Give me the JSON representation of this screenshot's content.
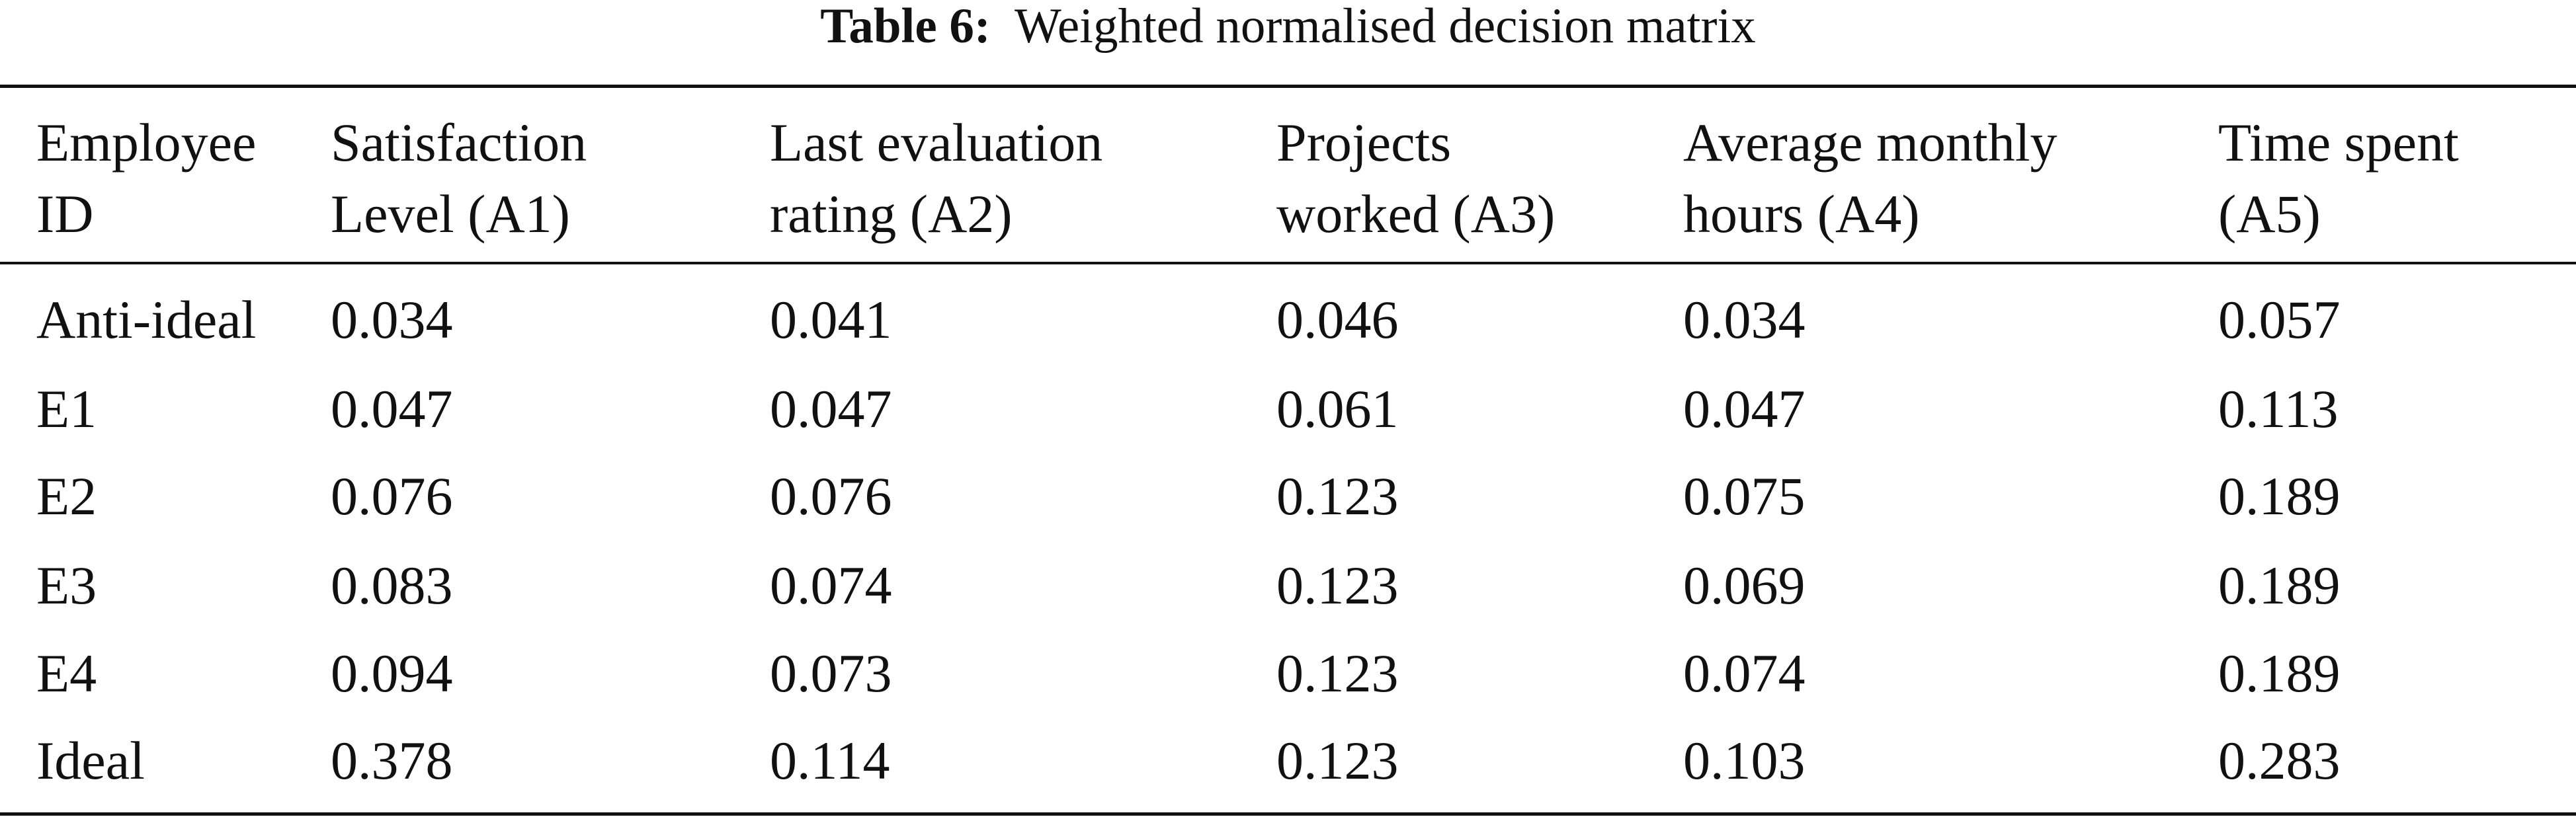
{
  "caption": {
    "label": "Table 6:",
    "title": "Weighted normalised decision matrix"
  },
  "table": {
    "headers": [
      [
        "Employee",
        "ID"
      ],
      [
        "Satisfaction",
        "Level (A1)"
      ],
      [
        "Last evaluation",
        "rating (A2)"
      ],
      [
        "Projects",
        "worked (A3)"
      ],
      [
        "Average monthly",
        "hours (A4)"
      ],
      [
        "Time spent",
        "(A5)"
      ]
    ],
    "rows": [
      [
        "Anti-ideal",
        "0.034",
        "0.041",
        "0.046",
        "0.034",
        "0.057"
      ],
      [
        "E1",
        "0.047",
        "0.047",
        "0.061",
        "0.047",
        "0.113"
      ],
      [
        "E2",
        "0.076",
        "0.076",
        "0.123",
        "0.075",
        "0.189"
      ],
      [
        "E3",
        "0.083",
        "0.074",
        "0.123",
        "0.069",
        "0.189"
      ],
      [
        "E4",
        "0.094",
        "0.073",
        "0.123",
        "0.074",
        "0.189"
      ],
      [
        "Ideal",
        "0.378",
        "0.114",
        "0.123",
        "0.103",
        "0.283"
      ]
    ]
  }
}
